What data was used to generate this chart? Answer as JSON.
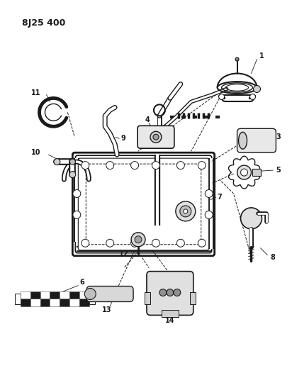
{
  "title_code": "8J25 400",
  "bg_color": "#ffffff",
  "line_color": "#1a1a1a",
  "fig_width": 4.12,
  "fig_height": 5.33,
  "dpi": 100
}
